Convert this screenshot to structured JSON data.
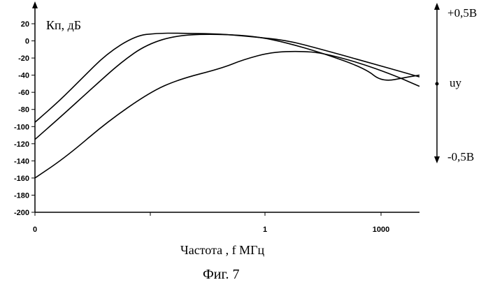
{
  "chart_data": {
    "type": "line",
    "ylabel": "Кп, дБ",
    "xlabel": "Частота , f  МГц",
    "caption": "Фиг. 7",
    "ylim": [
      -200,
      20
    ],
    "yticks": [
      20,
      0,
      -20,
      -40,
      -60,
      -80,
      -100,
      -120,
      -140,
      -160,
      -180,
      -200
    ],
    "xticks": [
      "0",
      "",
      "1",
      "1000"
    ],
    "grid": false,
    "series": [
      {
        "values": [
          [
            0,
            -95
          ],
          [
            0.17,
            -70
          ],
          [
            0.32,
            -45
          ],
          [
            0.5,
            -15
          ],
          [
            0.7,
            6
          ],
          [
            0.85,
            9
          ],
          [
            1.0,
            9
          ],
          [
            1.3,
            8
          ],
          [
            1.5,
            5
          ],
          [
            1.75,
            1
          ],
          [
            2.0,
            -10
          ],
          [
            2.3,
            -24
          ],
          [
            2.68,
            -42
          ]
        ]
      },
      {
        "values": [
          [
            0,
            -115
          ],
          [
            0.17,
            -90
          ],
          [
            0.4,
            -55
          ],
          [
            0.6,
            -25
          ],
          [
            0.78,
            -4
          ],
          [
            1.0,
            7
          ],
          [
            1.3,
            8
          ],
          [
            1.55,
            5
          ],
          [
            1.75,
            -2
          ],
          [
            2.0,
            -14
          ],
          [
            2.3,
            -32
          ],
          [
            2.42,
            -48
          ],
          [
            2.6,
            -42
          ],
          [
            2.68,
            -40
          ]
        ]
      },
      {
        "values": [
          [
            0,
            -160
          ],
          [
            0.22,
            -135
          ],
          [
            0.5,
            -95
          ],
          [
            0.8,
            -60
          ],
          [
            1.0,
            -45
          ],
          [
            1.3,
            -32
          ],
          [
            1.45,
            -22
          ],
          [
            1.65,
            -13
          ],
          [
            1.85,
            -12
          ],
          [
            2.0,
            -14
          ],
          [
            2.25,
            -25
          ],
          [
            2.5,
            -40
          ],
          [
            2.68,
            -53
          ]
        ]
      }
    ],
    "side_axis": {
      "top_label": "+0,5В",
      "bottom_label": "-0,5В",
      "mid_label": "uy"
    }
  }
}
